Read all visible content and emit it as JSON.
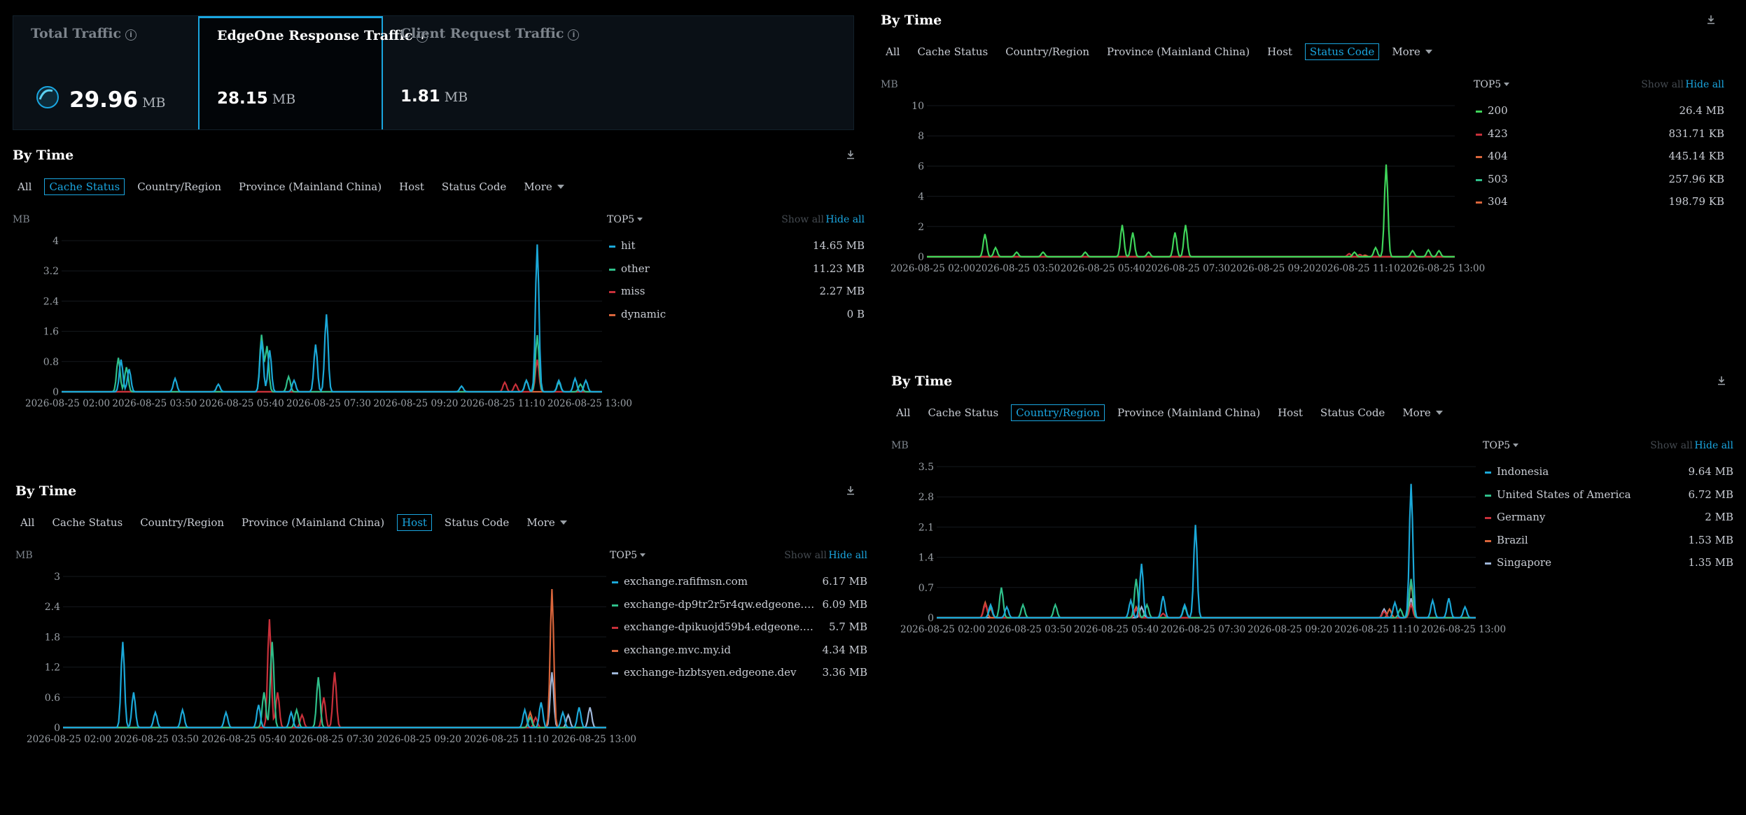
{
  "cards": [
    {
      "label": "Total Traffic",
      "value": "29.96",
      "unit": "MB",
      "active": false
    },
    {
      "label": "EdgeOne Response Traffic",
      "value": "28.15",
      "unit": "MB",
      "active": true
    },
    {
      "label": "Client Request Traffic",
      "value": "1.81",
      "unit": "MB",
      "active": false
    }
  ],
  "colors": {
    "accent": "#1aa6e0",
    "blue": "#1ba8d8",
    "green": "#2fbf8a",
    "red": "#c8303a",
    "orange": "#d9653b",
    "gray": "#9eb6d8",
    "lime": "#3fd45a"
  },
  "icons": {
    "download": "download-icon",
    "info": "info-icon"
  },
  "x_ticks": [
    "2026-08-25 02:00",
    "2026-08-25 03:50",
    "2026-08-25 05:40",
    "2026-08-25 07:30",
    "2026-08-25 09:20",
    "2026-08-25 11:10",
    "2026-08-25 13:00"
  ],
  "panels": {
    "cache": {
      "title": "By Time",
      "tabs": [
        "All",
        "Cache Status",
        "Country/Region",
        "Province (Mainland China)",
        "Host",
        "Status Code",
        "More"
      ],
      "selected": 1,
      "unit": "MB",
      "legend": {
        "top": "TOP5",
        "show_all": "Show all",
        "hide_all": "Hide all",
        "items": [
          {
            "name": "hit",
            "value": "14.65 MB",
            "color": "#1ba8d8"
          },
          {
            "name": "other",
            "value": "11.23 MB",
            "color": "#2fbf8a"
          },
          {
            "name": "miss",
            "value": "2.27 MB",
            "color": "#c8303a"
          },
          {
            "name": "dynamic",
            "value": "0 B",
            "color": "#d9653b"
          }
        ]
      }
    },
    "host": {
      "title": "By Time",
      "tabs": [
        "All",
        "Cache Status",
        "Country/Region",
        "Province (Mainland China)",
        "Host",
        "Status Code",
        "More"
      ],
      "selected": 4,
      "unit": "MB",
      "legend": {
        "top": "TOP5",
        "show_all": "Show all",
        "hide_all": "Hide all",
        "items": [
          {
            "name": "exchange.rafifmsn.com",
            "value": "6.17 MB",
            "color": "#1ba8d8"
          },
          {
            "name": "exchange-dp9tr2r5r4qw.edgeone.…",
            "value": "6.09 MB",
            "color": "#2fbf8a"
          },
          {
            "name": "exchange-dpikuojd59b4.edgeone.…",
            "value": "5.7 MB",
            "color": "#c8303a"
          },
          {
            "name": "exchange.mvc.my.id",
            "value": "4.34 MB",
            "color": "#d9653b"
          },
          {
            "name": "exchange-hzbtsyen.edgeone.dev",
            "value": "3.36 MB",
            "color": "#9eb6d8"
          }
        ]
      }
    },
    "status": {
      "title": "By Time",
      "tabs": [
        "All",
        "Cache Status",
        "Country/Region",
        "Province (Mainland China)",
        "Host",
        "Status Code",
        "More"
      ],
      "selected": 5,
      "unit": "MB",
      "legend": {
        "top": "TOP5",
        "show_all": "Show all",
        "hide_all": "Hide all",
        "items": [
          {
            "name": "200",
            "value": "26.4 MB",
            "color": "#3fd45a"
          },
          {
            "name": "423",
            "value": "831.71 KB",
            "color": "#c8303a"
          },
          {
            "name": "404",
            "value": "445.14 KB",
            "color": "#d9653b"
          },
          {
            "name": "503",
            "value": "257.96 KB",
            "color": "#2fbf8a"
          },
          {
            "name": "304",
            "value": "198.79 KB",
            "color": "#d9653b"
          }
        ]
      }
    },
    "country": {
      "title": "By Time",
      "tabs": [
        "All",
        "Cache Status",
        "Country/Region",
        "Province (Mainland China)",
        "Host",
        "Status Code",
        "More"
      ],
      "selected": 2,
      "unit": "MB",
      "legend": {
        "top": "TOP5",
        "show_all": "Show all",
        "hide_all": "Hide all",
        "items": [
          {
            "name": "Indonesia",
            "value": "9.64 MB",
            "color": "#1ba8d8"
          },
          {
            "name": "United States of America",
            "value": "6.72 MB",
            "color": "#2fbf8a"
          },
          {
            "name": "Germany",
            "value": "2 MB",
            "color": "#c8303a"
          },
          {
            "name": "Brazil",
            "value": "1.53 MB",
            "color": "#d9653b"
          },
          {
            "name": "Singapore",
            "value": "1.35 MB",
            "color": "#9eb6d8"
          }
        ]
      }
    }
  },
  "chart_data": [
    {
      "type": "line",
      "id": "cache",
      "ylabel": "MB",
      "ylim": [
        0,
        4
      ],
      "yticks": [
        "0",
        "0.8",
        "1.6",
        "2.4",
        "3.2",
        "4"
      ],
      "x": [
        "2026-08-25 02:00",
        "2026-08-25 03:50",
        "2026-08-25 05:40",
        "2026-08-25 07:30",
        "2026-08-25 09:20",
        "2026-08-25 11:10",
        "2026-08-25 13:00"
      ],
      "series": [
        {
          "name": "hit",
          "color": "#1ba8d8",
          "spikes": [
            [
              0.11,
              0.85
            ],
            [
              0.125,
              0.6
            ],
            [
              0.21,
              0.35
            ],
            [
              0.29,
              0.2
            ],
            [
              0.37,
              1.35
            ],
            [
              0.385,
              1.1
            ],
            [
              0.43,
              0.3
            ],
            [
              0.47,
              1.25
            ],
            [
              0.49,
              2.05
            ],
            [
              0.74,
              0.15
            ],
            [
              0.86,
              0.3
            ],
            [
              0.88,
              3.9
            ],
            [
              0.92,
              0.3
            ],
            [
              0.95,
              0.35
            ],
            [
              0.97,
              0.3
            ]
          ]
        },
        {
          "name": "other",
          "color": "#2fbf8a",
          "spikes": [
            [
              0.105,
              0.9
            ],
            [
              0.12,
              0.65
            ],
            [
              0.37,
              1.5
            ],
            [
              0.38,
              1.2
            ],
            [
              0.42,
              0.4
            ],
            [
              0.86,
              0.3
            ],
            [
              0.88,
              1.5
            ],
            [
              0.92,
              0.25
            ],
            [
              0.96,
              0.2
            ]
          ]
        },
        {
          "name": "miss",
          "color": "#c8303a",
          "spikes": [
            [
              0.82,
              0.25
            ],
            [
              0.84,
              0.2
            ],
            [
              0.88,
              0.85
            ]
          ]
        },
        {
          "name": "dynamic",
          "color": "#d9653b",
          "spikes": []
        }
      ]
    },
    {
      "type": "line",
      "id": "host",
      "ylabel": "MB",
      "ylim": [
        0,
        3
      ],
      "yticks": [
        "0",
        "0.6",
        "1.2",
        "1.8",
        "2.4",
        "3"
      ],
      "x": [
        "2026-08-25 02:00",
        "2026-08-25 03:50",
        "2026-08-25 05:40",
        "2026-08-25 07:30",
        "2026-08-25 09:20",
        "2026-08-25 11:10",
        "2026-08-25 13:00"
      ],
      "series": [
        {
          "name": "exchange.rafifmsn.com",
          "color": "#1ba8d8",
          "spikes": [
            [
              0.11,
              1.7
            ],
            [
              0.13,
              0.7
            ],
            [
              0.17,
              0.3
            ],
            [
              0.22,
              0.35
            ],
            [
              0.3,
              0.3
            ],
            [
              0.36,
              0.45
            ],
            [
              0.42,
              0.3
            ],
            [
              0.85,
              0.35
            ],
            [
              0.88,
              0.5
            ],
            [
              0.92,
              0.3
            ],
            [
              0.95,
              0.4
            ]
          ]
        },
        {
          "name": "exchange-dp9tr2r5r4qw.edgeone.…",
          "color": "#2fbf8a",
          "spikes": [
            [
              0.37,
              0.7
            ],
            [
              0.385,
              1.7
            ],
            [
              0.43,
              0.35
            ],
            [
              0.47,
              1.0
            ],
            [
              0.86,
              0.2
            ]
          ]
        },
        {
          "name": "exchange-dpikuojd59b4.edgeone.…",
          "color": "#c8303a",
          "spikes": [
            [
              0.38,
              2.15
            ],
            [
              0.395,
              0.7
            ],
            [
              0.44,
              0.25
            ],
            [
              0.48,
              0.6
            ],
            [
              0.5,
              1.1
            ],
            [
              0.87,
              0.2
            ]
          ]
        },
        {
          "name": "exchange.mvc.my.id",
          "color": "#d9653b",
          "spikes": [
            [
              0.9,
              2.75
            ],
            [
              0.86,
              0.3
            ]
          ]
        },
        {
          "name": "exchange-hzbtsyen.edgeone.dev",
          "color": "#9eb6d8",
          "spikes": [
            [
              0.9,
              1.1
            ],
            [
              0.93,
              0.25
            ],
            [
              0.97,
              0.4
            ]
          ]
        }
      ]
    },
    {
      "type": "line",
      "id": "status",
      "ylabel": "MB",
      "ylim": [
        0,
        10
      ],
      "yticks": [
        "0",
        "2",
        "4",
        "6",
        "8",
        "10"
      ],
      "x": [
        "2026-08-25 02:00",
        "2026-08-25 03:50",
        "2026-08-25 05:40",
        "2026-08-25 07:30",
        "2026-08-25 09:20",
        "2026-08-25 11:10",
        "2026-08-25 13:00"
      ],
      "series": [
        {
          "name": "200",
          "color": "#3fd45a",
          "spikes": [
            [
              0.11,
              1.5
            ],
            [
              0.13,
              0.6
            ],
            [
              0.17,
              0.3
            ],
            [
              0.22,
              0.3
            ],
            [
              0.3,
              0.3
            ],
            [
              0.37,
              2.1
            ],
            [
              0.39,
              1.6
            ],
            [
              0.42,
              0.3
            ],
            [
              0.47,
              1.6
            ],
            [
              0.49,
              2.1
            ],
            [
              0.81,
              0.3
            ],
            [
              0.85,
              0.6
            ],
            [
              0.87,
              6.1
            ],
            [
              0.92,
              0.4
            ],
            [
              0.95,
              0.45
            ],
            [
              0.97,
              0.4
            ]
          ]
        },
        {
          "name": "423",
          "color": "#c8303a",
          "spikes": [
            [
              0.8,
              0.2
            ],
            [
              0.82,
              0.15
            ]
          ]
        },
        {
          "name": "404",
          "color": "#d9653b",
          "spikes": [
            [
              0.83,
              0.1
            ]
          ]
        },
        {
          "name": "503",
          "color": "#2fbf8a",
          "spikes": []
        },
        {
          "name": "304",
          "color": "#d9653b",
          "spikes": []
        }
      ]
    },
    {
      "type": "line",
      "id": "country",
      "ylabel": "MB",
      "ylim": [
        0,
        3.5
      ],
      "yticks": [
        "0",
        "0.7",
        "1.4",
        "2.1",
        "2.8",
        "3.5"
      ],
      "x": [
        "2026-08-25 02:00",
        "2026-08-25 03:50",
        "2026-08-25 05:40",
        "2026-08-25 07:30",
        "2026-08-25 09:20",
        "2026-08-25 11:10",
        "2026-08-25 13:00"
      ],
      "series": [
        {
          "name": "Indonesia",
          "color": "#1ba8d8",
          "spikes": [
            [
              0.1,
              0.3
            ],
            [
              0.13,
              0.25
            ],
            [
              0.36,
              0.4
            ],
            [
              0.38,
              1.25
            ],
            [
              0.42,
              0.5
            ],
            [
              0.46,
              0.3
            ],
            [
              0.48,
              2.15
            ],
            [
              0.85,
              0.35
            ],
            [
              0.88,
              3.1
            ],
            [
              0.92,
              0.4
            ],
            [
              0.95,
              0.45
            ],
            [
              0.98,
              0.25
            ]
          ]
        },
        {
          "name": "United States of America",
          "color": "#2fbf8a",
          "spikes": [
            [
              0.1,
              0.25
            ],
            [
              0.12,
              0.7
            ],
            [
              0.16,
              0.3
            ],
            [
              0.22,
              0.3
            ],
            [
              0.37,
              0.9
            ],
            [
              0.39,
              0.3
            ],
            [
              0.46,
              0.25
            ],
            [
              0.86,
              0.2
            ],
            [
              0.88,
              0.9
            ]
          ]
        },
        {
          "name": "Germany",
          "color": "#c8303a",
          "spikes": [
            [
              0.09,
              0.3
            ],
            [
              0.1,
              0.2
            ],
            [
              0.37,
              0.2
            ],
            [
              0.42,
              0.1
            ],
            [
              0.83,
              0.15
            ],
            [
              0.88,
              0.3
            ]
          ]
        },
        {
          "name": "Brazil",
          "color": "#d9653b",
          "spikes": [
            [
              0.09,
              0.35
            ],
            [
              0.37,
              0.25
            ],
            [
              0.88,
              0.8
            ],
            [
              0.84,
              0.2
            ]
          ]
        },
        {
          "name": "Singapore",
          "color": "#9eb6d8",
          "spikes": [
            [
              0.38,
              0.25
            ],
            [
              0.88,
              0.45
            ],
            [
              0.83,
              0.2
            ]
          ]
        }
      ]
    }
  ]
}
